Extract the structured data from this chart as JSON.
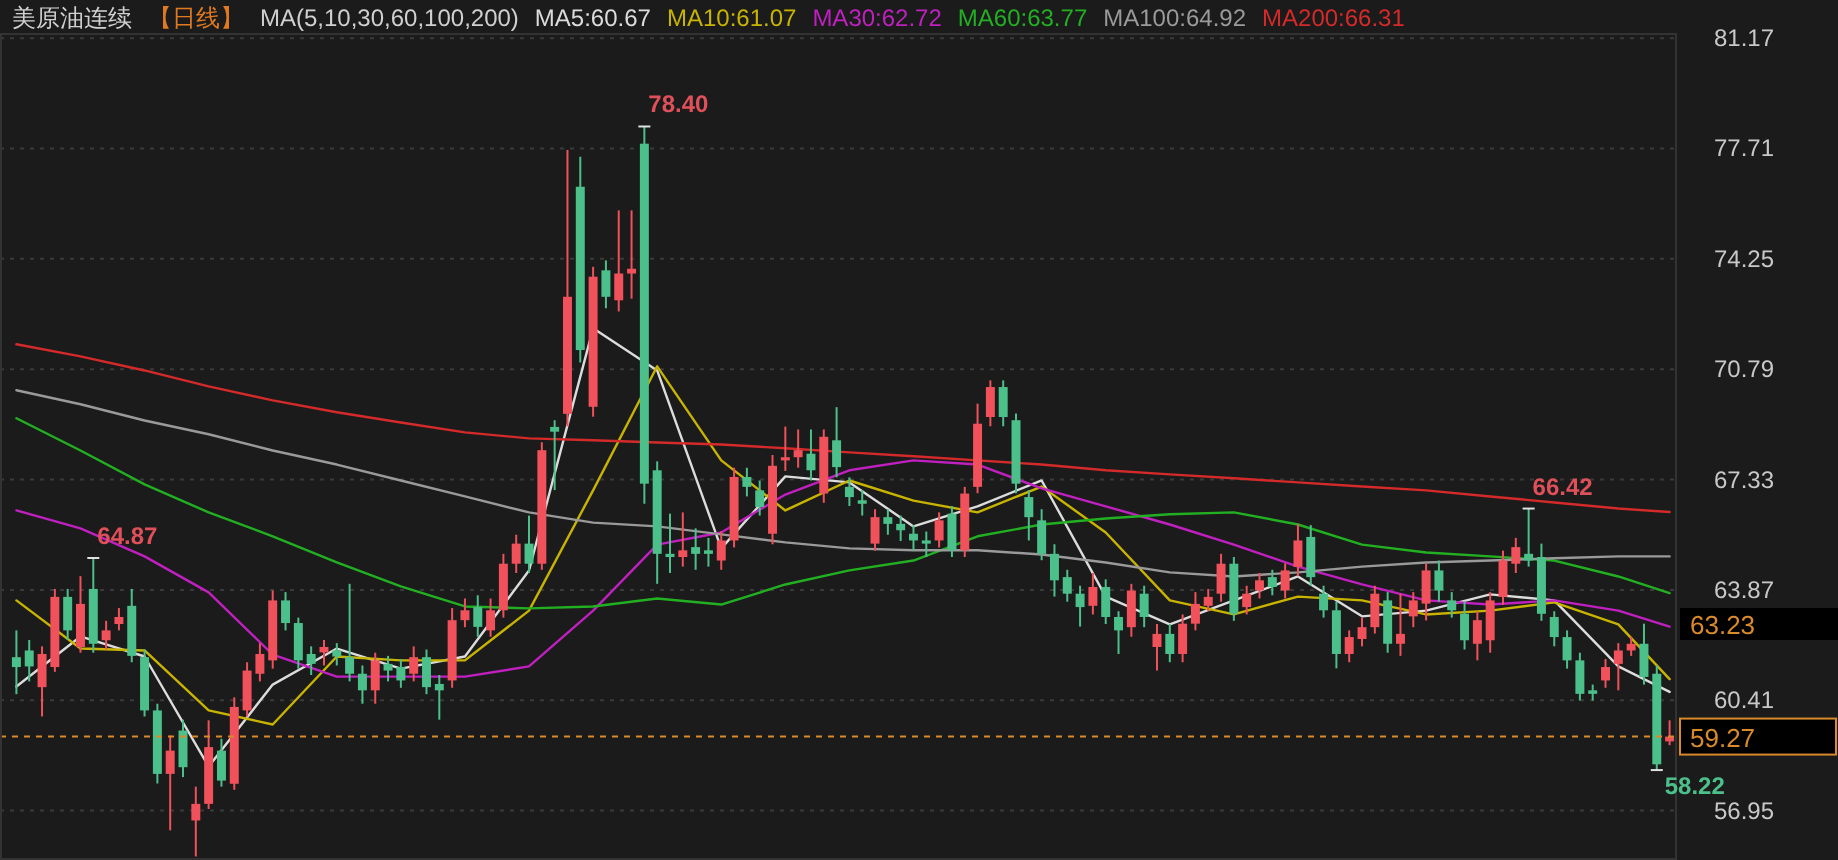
{
  "chart_data": {
    "type": "candlestick",
    "title": "美原油连续",
    "subtitle": "【日线】",
    "legend_title": "MA(5,10,30,60,100,200)",
    "categories": [
      null,
      null,
      null,
      null,
      null,
      null,
      null,
      null,
      null,
      null,
      null,
      null,
      null,
      null,
      null,
      null,
      null,
      null,
      null,
      null,
      null,
      null,
      null,
      null,
      null,
      null,
      null,
      null,
      null,
      null,
      null,
      null,
      null,
      null,
      null,
      null,
      null,
      null,
      null,
      null,
      null,
      null,
      null,
      null,
      null,
      null,
      null,
      null,
      null,
      null,
      null,
      null,
      null,
      null,
      null,
      null,
      null,
      null,
      null,
      null,
      null,
      null,
      null,
      null,
      null,
      null,
      null,
      null,
      null,
      null,
      null,
      null,
      null,
      null,
      null,
      null,
      null,
      null,
      null,
      null,
      null,
      null,
      null,
      null,
      null,
      null,
      null,
      null,
      null,
      null,
      null,
      null,
      null,
      null,
      null,
      null,
      null,
      null,
      null,
      null,
      null,
      null,
      null,
      null,
      null,
      null,
      null,
      null,
      null,
      null,
      null,
      null,
      null,
      null,
      null,
      null,
      null,
      null,
      null,
      null,
      null,
      null,
      null,
      null,
      null,
      null,
      null,
      null,
      null,
      null
    ],
    "ohlc": [
      [
        61.76,
        62.6,
        60.6,
        61.45
      ],
      [
        61.97,
        62.3,
        61.0,
        61.47
      ],
      [
        60.82,
        62.1,
        59.9,
        61.86
      ],
      [
        61.45,
        63.9,
        61.3,
        63.65
      ],
      [
        63.65,
        63.9,
        62.3,
        62.6
      ],
      [
        62.08,
        64.3,
        61.9,
        63.43
      ],
      [
        63.9,
        64.87,
        61.9,
        62.18
      ],
      [
        62.29,
        62.9,
        62.0,
        62.6
      ],
      [
        62.8,
        63.3,
        62.6,
        63.02
      ],
      [
        63.37,
        63.9,
        61.6,
        61.8
      ],
      [
        61.76,
        62.0,
        59.9,
        60.09
      ],
      [
        60.09,
        60.3,
        57.8,
        58.1
      ],
      [
        58.1,
        59.3,
        56.33,
        58.83
      ],
      [
        59.46,
        59.8,
        58.0,
        58.31
      ],
      [
        56.64,
        57.7,
        55.51,
        57.16
      ],
      [
        57.16,
        59.78,
        57.0,
        58.94
      ],
      [
        58.83,
        59.2,
        57.7,
        57.89
      ],
      [
        57.79,
        60.5,
        57.6,
        60.2
      ],
      [
        60.09,
        61.6,
        59.9,
        61.34
      ],
      [
        61.24,
        62.2,
        61.0,
        61.86
      ],
      [
        61.66,
        63.85,
        61.4,
        63.54
      ],
      [
        63.54,
        63.8,
        62.6,
        62.83
      ],
      [
        62.83,
        63.0,
        61.4,
        61.66
      ],
      [
        61.86,
        62.1,
        61.2,
        61.55
      ],
      [
        61.91,
        62.3,
        61.5,
        62.08
      ],
      [
        61.97,
        62.2,
        61.5,
        61.78
      ],
      [
        61.76,
        64.06,
        61.0,
        61.24
      ],
      [
        61.24,
        61.5,
        60.3,
        60.72
      ],
      [
        60.72,
        61.9,
        60.3,
        61.66
      ],
      [
        61.55,
        61.8,
        61.0,
        61.34
      ],
      [
        61.45,
        61.7,
        60.8,
        61.03
      ],
      [
        61.24,
        62.1,
        61.0,
        61.76
      ],
      [
        61.76,
        62.0,
        60.6,
        60.82
      ],
      [
        60.92,
        61.2,
        59.8,
        60.72
      ],
      [
        61.03,
        63.3,
        60.8,
        62.92
      ],
      [
        62.92,
        63.6,
        62.7,
        63.23
      ],
      [
        63.33,
        63.7,
        62.4,
        62.71
      ],
      [
        62.6,
        63.6,
        62.4,
        63.23
      ],
      [
        63.23,
        65.0,
        63.0,
        64.69
      ],
      [
        64.69,
        65.6,
        64.4,
        65.32
      ],
      [
        65.32,
        66.2,
        64.4,
        64.69
      ],
      [
        64.69,
        68.5,
        64.5,
        68.25
      ],
      [
        68.98,
        69.19,
        67.0,
        68.83
      ],
      [
        69.39,
        77.66,
        69.0,
        73.06
      ],
      [
        76.51,
        77.45,
        71.0,
        71.39
      ],
      [
        69.61,
        74.0,
        69.3,
        73.69
      ],
      [
        73.89,
        74.2,
        72.7,
        73.06
      ],
      [
        72.95,
        75.77,
        72.6,
        73.79
      ],
      [
        73.79,
        75.77,
        73.0,
        73.94
      ],
      [
        77.86,
        78.4,
        66.57,
        67.2
      ],
      [
        67.62,
        67.9,
        64.06,
        65.0
      ],
      [
        65.0,
        66.26,
        64.4,
        64.9
      ],
      [
        64.9,
        66.3,
        64.6,
        65.11
      ],
      [
        65.21,
        65.8,
        64.5,
        65.0
      ],
      [
        65.11,
        65.5,
        64.6,
        65.0
      ],
      [
        64.79,
        65.7,
        64.5,
        65.42
      ],
      [
        65.42,
        67.7,
        65.2,
        67.41
      ],
      [
        67.41,
        67.7,
        66.8,
        67.1
      ],
      [
        66.99,
        67.3,
        66.2,
        66.47
      ],
      [
        65.63,
        68.1,
        65.3,
        67.76
      ],
      [
        67.93,
        68.99,
        67.6,
        68.03
      ],
      [
        68.03,
        68.9,
        67.7,
        68.25
      ],
      [
        68.14,
        68.9,
        67.3,
        67.62
      ],
      [
        66.89,
        68.9,
        66.6,
        68.67
      ],
      [
        68.56,
        69.6,
        67.4,
        67.72
      ],
      [
        67.1,
        67.4,
        66.5,
        66.78
      ],
      [
        66.68,
        67.0,
        66.2,
        66.57
      ],
      [
        65.32,
        66.4,
        65.1,
        66.15
      ],
      [
        66.15,
        66.4,
        65.6,
        65.94
      ],
      [
        65.94,
        66.2,
        65.4,
        65.74
      ],
      [
        65.63,
        65.9,
        65.1,
        65.42
      ],
      [
        65.42,
        65.7,
        64.9,
        65.32
      ],
      [
        65.42,
        66.3,
        65.2,
        66.05
      ],
      [
        66.26,
        66.5,
        64.9,
        65.11
      ],
      [
        65.11,
        67.1,
        64.9,
        66.89
      ],
      [
        67.1,
        69.71,
        66.9,
        69.08
      ],
      [
        69.29,
        70.44,
        69.0,
        70.23
      ],
      [
        70.23,
        70.44,
        69.0,
        69.29
      ],
      [
        69.19,
        69.4,
        66.9,
        67.2
      ],
      [
        66.78,
        67.0,
        65.42,
        66.15
      ],
      [
        66.05,
        66.4,
        64.8,
        65.0
      ],
      [
        65.0,
        65.3,
        63.66,
        64.17
      ],
      [
        64.27,
        64.5,
        63.5,
        63.75
      ],
      [
        63.75,
        64.0,
        62.72,
        63.33
      ],
      [
        63.37,
        64.4,
        63.1,
        63.96
      ],
      [
        63.96,
        64.2,
        62.8,
        63.02
      ],
      [
        63.02,
        63.2,
        61.86,
        62.6
      ],
      [
        62.7,
        64.06,
        62.4,
        63.85
      ],
      [
        63.75,
        64.0,
        62.7,
        63.02
      ],
      [
        62.08,
        62.8,
        61.34,
        62.49
      ],
      [
        62.49,
        62.8,
        61.6,
        61.86
      ],
      [
        61.86,
        63.1,
        61.6,
        62.81
      ],
      [
        62.81,
        63.8,
        62.6,
        63.43
      ],
      [
        63.37,
        63.9,
        63.2,
        63.65
      ],
      [
        63.75,
        65.0,
        63.5,
        64.69
      ],
      [
        64.69,
        64.9,
        62.9,
        63.12
      ],
      [
        63.33,
        64.0,
        63.1,
        63.75
      ],
      [
        63.85,
        64.4,
        63.6,
        64.17
      ],
      [
        64.27,
        64.5,
        63.7,
        63.96
      ],
      [
        63.85,
        64.7,
        63.6,
        64.48
      ],
      [
        64.59,
        65.94,
        64.3,
        65.42
      ],
      [
        65.53,
        65.9,
        64.0,
        64.27
      ],
      [
        63.75,
        64.0,
        63.0,
        63.23
      ],
      [
        63.23,
        63.5,
        61.41,
        61.86
      ],
      [
        61.86,
        62.6,
        61.6,
        62.39
      ],
      [
        62.33,
        63.0,
        62.1,
        62.7
      ],
      [
        62.7,
        64.0,
        62.5,
        63.75
      ],
      [
        63.54,
        63.8,
        61.9,
        62.18
      ],
      [
        62.18,
        63.75,
        61.8,
        62.49
      ],
      [
        63.04,
        63.8,
        62.7,
        63.54
      ],
      [
        63.44,
        64.69,
        62.91,
        64.48
      ],
      [
        64.48,
        64.79,
        63.5,
        63.85
      ],
      [
        63.54,
        63.8,
        63.0,
        63.23
      ],
      [
        63.12,
        63.5,
        62.0,
        62.29
      ],
      [
        62.18,
        63.2,
        61.66,
        62.92
      ],
      [
        62.29,
        63.8,
        61.9,
        63.54
      ],
      [
        63.65,
        65.1,
        63.4,
        64.79
      ],
      [
        64.69,
        65.5,
        64.4,
        65.21
      ],
      [
        65.0,
        66.42,
        64.6,
        64.79
      ],
      [
        64.9,
        65.32,
        62.9,
        63.12
      ],
      [
        63.02,
        63.2,
        62.1,
        62.39
      ],
      [
        62.39,
        62.6,
        61.4,
        61.66
      ],
      [
        61.66,
        61.9,
        60.4,
        60.61
      ],
      [
        60.72,
        60.9,
        60.4,
        60.61
      ],
      [
        61.03,
        61.7,
        60.8,
        61.45
      ],
      [
        61.55,
        62.2,
        60.72,
        61.97
      ],
      [
        61.97,
        62.4,
        61.8,
        62.18
      ],
      [
        62.18,
        62.81,
        60.9,
        61.14
      ],
      [
        61.24,
        61.5,
        58.22,
        58.4
      ],
      [
        59.12,
        59.78,
        59.0,
        59.27
      ]
    ],
    "series": [
      {
        "name": "MA5:60.67",
        "type": "line",
        "color": "#dcdcdc",
        "values": [
          60.84,
          null,
          null,
          null,
          null,
          62.41,
          null,
          null,
          null,
          null,
          61.78,
          null,
          null,
          null,
          null,
          58.33,
          null,
          null,
          null,
          null,
          60.9,
          null,
          null,
          null,
          null,
          62.03,
          null,
          null,
          null,
          null,
          61.4,
          null,
          null,
          null,
          null,
          61.78,
          null,
          null,
          null,
          null,
          64.48,
          null,
          null,
          null,
          null,
          72.07,
          null,
          null,
          null,
          null,
          70.75,
          null,
          null,
          null,
          null,
          65.17,
          null,
          null,
          null,
          null,
          67.43,
          null,
          null,
          null,
          null,
          67.24,
          null,
          null,
          null,
          null,
          65.86,
          null,
          null,
          null,
          null,
          66.49,
          null,
          null,
          null,
          null,
          67.3,
          null,
          null,
          null,
          null,
          63.66,
          null,
          null,
          null,
          null,
          62.79,
          null,
          null,
          null,
          null,
          63.54,
          null,
          null,
          null,
          null,
          64.29,
          null,
          null,
          null,
          null,
          63.04,
          null,
          null,
          null,
          null,
          63.22,
          null,
          null,
          null,
          null,
          63.73,
          null,
          null,
          null,
          null,
          63.54,
          null,
          null,
          null,
          null,
          61.47,
          null,
          null,
          null,
          60.67
        ]
      },
      {
        "name": "MA10:61.07",
        "type": "line",
        "color": "#c8b400",
        "values": [
          63.54,
          null,
          null,
          null,
          null,
          62.03,
          null,
          null,
          null,
          null,
          61.97,
          null,
          null,
          null,
          null,
          60.09,
          null,
          null,
          null,
          null,
          59.65,
          null,
          null,
          null,
          null,
          61.78,
          null,
          null,
          null,
          null,
          61.66,
          null,
          null,
          null,
          null,
          61.66,
          null,
          null,
          null,
          null,
          63.22,
          null,
          null,
          null,
          null,
          66.99,
          null,
          null,
          null,
          null,
          70.88,
          null,
          null,
          null,
          null,
          67.93,
          null,
          null,
          null,
          null,
          66.36,
          null,
          null,
          null,
          null,
          67.3,
          null,
          null,
          null,
          null,
          66.67,
          null,
          null,
          null,
          null,
          66.3,
          null,
          null,
          null,
          null,
          67.11,
          null,
          null,
          null,
          null,
          65.67,
          null,
          null,
          null,
          null,
          63.54,
          null,
          null,
          null,
          null,
          63.1,
          null,
          null,
          null,
          null,
          63.66,
          null,
          null,
          null,
          null,
          63.54,
          null,
          null,
          null,
          null,
          63.1,
          null,
          null,
          null,
          null,
          63.22,
          null,
          null,
          null,
          null,
          63.48,
          null,
          null,
          null,
          null,
          62.79,
          null,
          null,
          null,
          61.07
        ]
      },
      {
        "name": "MA30:62.72",
        "type": "line",
        "color": "#c020c0",
        "values": [
          66.36,
          null,
          null,
          null,
          null,
          65.8,
          null,
          null,
          null,
          null,
          64.92,
          null,
          null,
          null,
          null,
          63.79,
          null,
          null,
          null,
          null,
          61.84,
          null,
          null,
          null,
          null,
          61.15,
          null,
          null,
          null,
          null,
          61.15,
          null,
          null,
          null,
          null,
          61.15,
          null,
          null,
          null,
          null,
          61.47,
          null,
          null,
          null,
          null,
          63.22,
          null,
          null,
          null,
          null,
          65.29,
          null,
          null,
          null,
          null,
          65.67,
          null,
          null,
          null,
          null,
          66.86,
          null,
          null,
          null,
          null,
          67.62,
          null,
          null,
          null,
          null,
          67.93,
          null,
          null,
          null,
          null,
          67.8,
          null,
          null,
          null,
          null,
          67.05,
          null,
          null,
          null,
          null,
          66.49,
          null,
          null,
          null,
          null,
          65.92,
          null,
          null,
          null,
          null,
          65.29,
          null,
          null,
          null,
          null,
          64.6,
          null,
          null,
          null,
          null,
          64.04,
          null,
          null,
          null,
          null,
          63.54,
          null,
          null,
          null,
          null,
          63.41,
          null,
          null,
          null,
          null,
          63.54,
          null,
          null,
          null,
          null,
          63.22,
          null,
          null,
          null,
          62.72
        ]
      },
      {
        "name": "MA60:63.77",
        "type": "line",
        "color": "#22b022",
        "values": [
          69.25,
          null,
          null,
          null,
          null,
          68.24,
          null,
          null,
          null,
          null,
          67.18,
          null,
          null,
          null,
          null,
          66.3,
          null,
          null,
          null,
          null,
          65.55,
          null,
          null,
          null,
          null,
          64.73,
          null,
          null,
          null,
          null,
          63.98,
          null,
          null,
          null,
          null,
          63.35,
          null,
          null,
          null,
          null,
          63.29,
          null,
          null,
          null,
          null,
          63.35,
          null,
          null,
          null,
          null,
          63.6,
          null,
          null,
          null,
          null,
          63.41,
          null,
          null,
          null,
          null,
          64.04,
          null,
          null,
          null,
          null,
          64.48,
          null,
          null,
          null,
          null,
          64.79,
          null,
          null,
          null,
          null,
          65.55,
          null,
          null,
          null,
          null,
          65.92,
          null,
          null,
          null,
          null,
          66.11,
          null,
          null,
          null,
          null,
          66.24,
          null,
          null,
          null,
          null,
          66.3,
          null,
          null,
          null,
          null,
          65.92,
          null,
          null,
          null,
          null,
          65.29,
          null,
          null,
          null,
          null,
          65.04,
          null,
          null,
          null,
          null,
          64.92,
          null,
          null,
          null,
          null,
          64.79,
          null,
          null,
          null,
          null,
          64.29,
          null,
          null,
          null,
          63.77
        ]
      },
      {
        "name": "MA100:64.92",
        "type": "line",
        "color": "#9a9a9a",
        "values": [
          70.13,
          null,
          null,
          null,
          null,
          69.69,
          null,
          null,
          null,
          null,
          69.18,
          null,
          null,
          null,
          null,
          68.75,
          null,
          null,
          null,
          null,
          68.24,
          null,
          null,
          null,
          null,
          67.8,
          null,
          null,
          null,
          null,
          67.3,
          null,
          null,
          null,
          null,
          66.8,
          null,
          null,
          null,
          null,
          66.3,
          null,
          null,
          null,
          null,
          65.98,
          null,
          null,
          null,
          null,
          65.86,
          null,
          null,
          null,
          null,
          65.61,
          null,
          null,
          null,
          null,
          65.36,
          null,
          null,
          null,
          null,
          65.17,
          null,
          null,
          null,
          null,
          65.11,
          null,
          null,
          null,
          null,
          65.11,
          null,
          null,
          null,
          null,
          64.98,
          null,
          null,
          null,
          null,
          64.73,
          null,
          null,
          null,
          null,
          64.42,
          null,
          null,
          null,
          null,
          64.29,
          null,
          null,
          null,
          null,
          64.42,
          null,
          null,
          null,
          null,
          64.6,
          null,
          null,
          null,
          null,
          64.73,
          null,
          null,
          null,
          null,
          64.79,
          null,
          null,
          null,
          null,
          64.86,
          null,
          null,
          null,
          null,
          64.92,
          null,
          null,
          null,
          64.92
        ]
      },
      {
        "name": "MA200:66.31",
        "type": "line",
        "color": "#d42a2a",
        "values": [
          71.57,
          null,
          null,
          null,
          null,
          71.19,
          null,
          null,
          null,
          null,
          70.75,
          null,
          null,
          null,
          null,
          70.25,
          null,
          null,
          null,
          null,
          69.81,
          null,
          null,
          null,
          null,
          69.44,
          null,
          null,
          null,
          null,
          69.12,
          null,
          null,
          null,
          null,
          68.81,
          null,
          null,
          null,
          null,
          68.62,
          null,
          null,
          null,
          null,
          68.56,
          null,
          null,
          null,
          null,
          68.49,
          null,
          null,
          null,
          null,
          68.43,
          null,
          null,
          null,
          null,
          68.31,
          null,
          null,
          null,
          null,
          68.18,
          null,
          null,
          null,
          null,
          68.06,
          null,
          null,
          null,
          null,
          67.93,
          null,
          null,
          null,
          null,
          67.8,
          null,
          null,
          null,
          null,
          67.62,
          null,
          null,
          null,
          null,
          67.49,
          null,
          null,
          null,
          null,
          67.37,
          null,
          null,
          null,
          null,
          67.24,
          null,
          null,
          null,
          null,
          67.11,
          null,
          null,
          null,
          null,
          66.99,
          null,
          null,
          null,
          null,
          66.8,
          null,
          null,
          null,
          null,
          66.61,
          null,
          null,
          null,
          null,
          66.42,
          null,
          null,
          null,
          66.31
        ]
      }
    ],
    "ylim": [
      55.4,
      81.3
    ],
    "yticks": [
      56.95,
      60.41,
      63.87,
      67.33,
      70.79,
      74.25,
      77.71,
      81.17
    ],
    "grid": "y",
    "legend": "top",
    "ref_lines": [
      {
        "axis": "y",
        "value": 59.27,
        "label": "59.27",
        "color": "#d98a2b",
        "line_style": "dashed"
      }
    ],
    "annotations": [
      "63.23"
    ],
    "value_labels": [
      null,
      null,
      null,
      null,
      null,
      null,
      "64.87",
      null,
      null,
      null,
      null,
      null,
      null,
      null,
      null,
      null,
      null,
      null,
      null,
      null,
      null,
      null,
      null,
      null,
      null,
      null,
      null,
      null,
      null,
      null,
      null,
      null,
      null,
      null,
      null,
      null,
      null,
      null,
      null,
      null,
      null,
      null,
      null,
      null,
      null,
      null,
      null,
      null,
      null,
      "78.40",
      null,
      null,
      null,
      null,
      null,
      null,
      null,
      null,
      null,
      null,
      null,
      null,
      null,
      null,
      null,
      null,
      null,
      null,
      null,
      null,
      null,
      null,
      null,
      null,
      null,
      null,
      null,
      null,
      null,
      null,
      null,
      null,
      null,
      null,
      null,
      null,
      null,
      null,
      null,
      null,
      null,
      null,
      null,
      null,
      null,
      null,
      null,
      null,
      null,
      null,
      null,
      null,
      null,
      null,
      null,
      null,
      null,
      null,
      null,
      null,
      null,
      null,
      null,
      null,
      null,
      null,
      null,
      null,
      "66.42",
      null,
      null,
      null,
      null,
      null,
      null,
      null,
      null,
      null,
      "58.22",
      null
    ]
  }
}
